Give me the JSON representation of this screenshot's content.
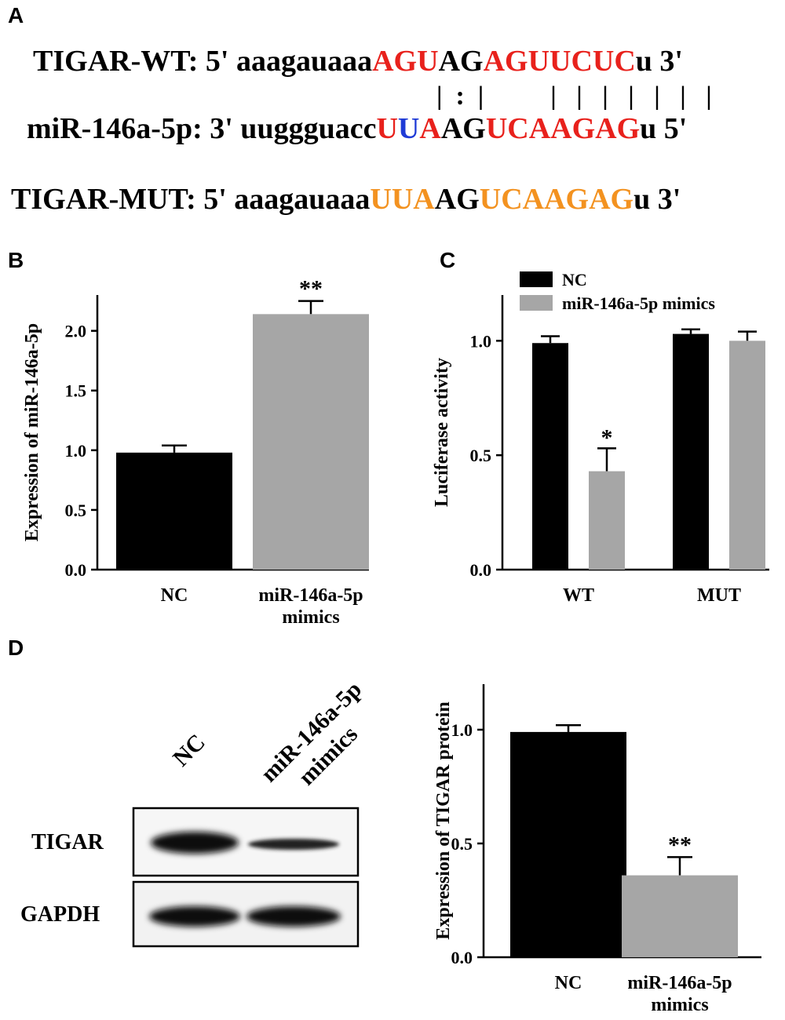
{
  "panel_letters": [
    "A",
    "B",
    "C",
    "D"
  ],
  "panel_a": {
    "rows": [
      {
        "id": "tigar-wt",
        "segments": [
          {
            "text": "TIGAR-WT: 5' aaagauaaa",
            "color": "#000000"
          },
          {
            "text": "AG",
            "color": "#e8211c"
          },
          {
            "text": "U",
            "color": "#e8211c"
          },
          {
            "text": "AG",
            "color": "#000000"
          },
          {
            "text": "AGUUCUC",
            "color": "#e8211c"
          },
          {
            "text": "u 3'",
            "color": "#000000"
          }
        ]
      },
      {
        "id": "mir-146a-5p",
        "segments": [
          {
            "text": "miR-146a-5p: 3' uuggguacc",
            "color": "#000000"
          },
          {
            "text": "U",
            "color": "#e8211c"
          },
          {
            "text": "U",
            "color": "#1f3bd6"
          },
          {
            "text": "A",
            "color": "#e8211c"
          },
          {
            "text": "AG",
            "color": "#000000"
          },
          {
            "text": "UCAAGAG",
            "color": "#e8211c"
          },
          {
            "text": "u 5'",
            "color": "#000000"
          }
        ]
      },
      {
        "id": "tigar-mut",
        "segments": [
          {
            "text": "TIGAR-MUT: 5' aaagauaaa",
            "color": "#000000"
          },
          {
            "text": "UUA",
            "color": "#f39220"
          },
          {
            "text": "AG",
            "color": "#000000"
          },
          {
            "text": "UCAAGAG",
            "color": "#f39220"
          },
          {
            "text": "u 3'",
            "color": "#000000"
          }
        ]
      }
    ],
    "pairing": "|  :  |          |   |   |   |   |   |   |"
  },
  "colors": {
    "nc": "#000000",
    "mimics": "#a6a6a6",
    "wt_red": "#e8211c",
    "wobble_blue": "#1f3bd6",
    "mut_orange": "#f39220"
  },
  "chart_data": [
    {
      "id": "B",
      "type": "bar",
      "categories": [
        [
          "NC"
        ],
        [
          "miR-146a-5p",
          "mimics"
        ]
      ],
      "values": [
        0.98,
        2.14
      ],
      "errors": [
        0.06,
        0.11
      ],
      "significance": [
        "",
        "**"
      ],
      "ylabel": "Expression of miR-146a-5p",
      "ylim": [
        0,
        2.3
      ],
      "yticks": [
        "0.0",
        "0.5",
        "1.0",
        "1.5",
        "2.0"
      ],
      "colors": [
        "#000000",
        "#a6a6a6"
      ]
    },
    {
      "id": "C",
      "type": "bar",
      "categories": [
        "WT",
        "MUT"
      ],
      "series": [
        {
          "name": "NC",
          "values": [
            0.99,
            1.03
          ],
          "errors": [
            0.03,
            0.02
          ],
          "significance": [
            "",
            ""
          ],
          "color": "#000000"
        },
        {
          "name": "miR-146a-5p mimics",
          "values": [
            0.43,
            1.0
          ],
          "errors": [
            0.1,
            0.04
          ],
          "significance": [
            "*",
            ""
          ],
          "color": "#a6a6a6"
        }
      ],
      "ylabel": "Luciferase activity",
      "ylim": [
        0,
        1.2
      ],
      "yticks": [
        "0.0",
        "0.5",
        "1.0"
      ],
      "legend": "top-left"
    },
    {
      "id": "D",
      "type": "bar",
      "categories": [
        [
          "NC"
        ],
        [
          "miR-146a-5p",
          "mimics"
        ]
      ],
      "values": [
        0.99,
        0.36
      ],
      "errors": [
        0.03,
        0.08
      ],
      "significance": [
        "",
        "**"
      ],
      "ylabel": "Expression of TIGAR protein",
      "ylim": [
        0,
        1.2
      ],
      "yticks": [
        "0.0",
        "0.5",
        "1.0"
      ],
      "colors": [
        "#000000",
        "#a6a6a6"
      ]
    }
  ],
  "blot": {
    "lanes": [
      [
        "NC"
      ],
      [
        "miR-146a-5p",
        "mimics"
      ]
    ],
    "rows": [
      "TIGAR",
      "GAPDH"
    ]
  }
}
